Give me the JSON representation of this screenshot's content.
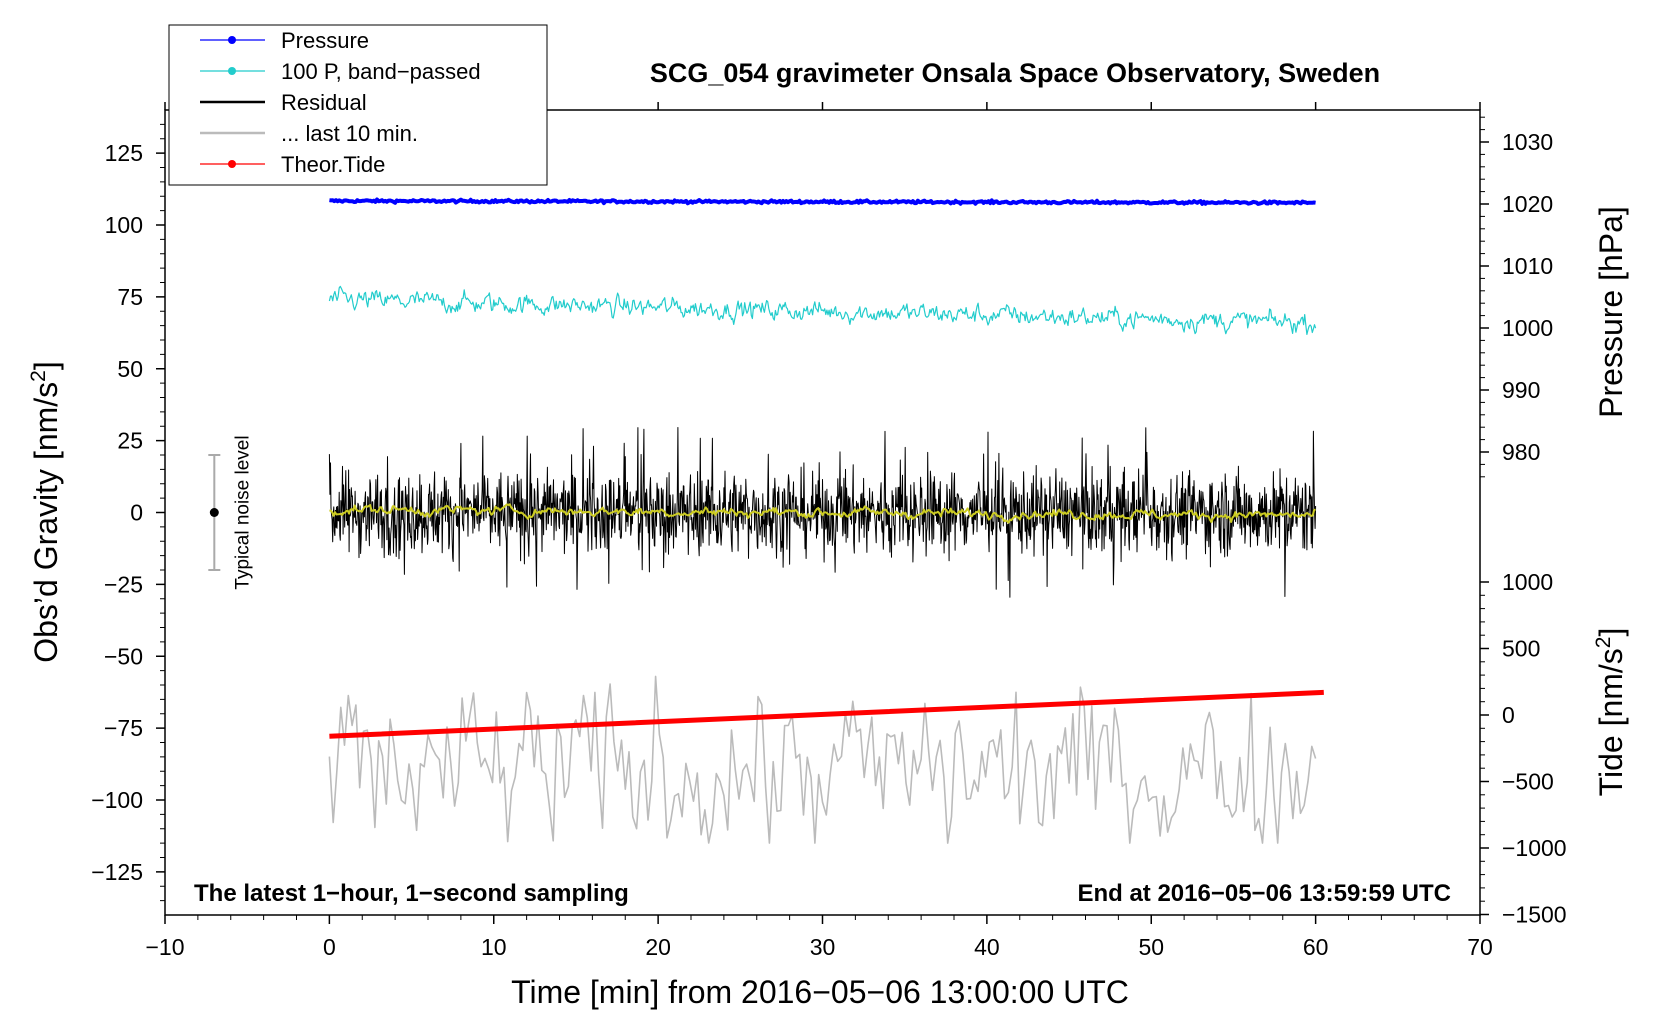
{
  "chart_data": {
    "type": "line",
    "title": "SCG_054 gravimeter Onsala Space Observatory, Sweden",
    "xlabel": "Time [min] from 2016−05−06 13:00:00 UTC",
    "ylabel_left": "Obs’d Gravity [nm/s",
    "ylabel_left_sup": "2",
    "ylabel_left_end": "]",
    "ylabel_right_pressure": "Pressure [hPa]",
    "ylabel_right_tide": "Tide [nm/s",
    "ylabel_right_tide_sup": "2",
    "ylabel_right_tide_end": "]",
    "xlim": [
      -10,
      70
    ],
    "ylim_left": [
      -140,
      140
    ],
    "pressure_range_shown": [
      975,
      1035
    ],
    "tide_range_shown": [
      -1500,
      1100
    ],
    "x_ticks": [
      -10,
      0,
      10,
      20,
      30,
      40,
      50,
      60,
      70
    ],
    "x_tick_labels": [
      "−10",
      "0",
      "10",
      "20",
      "30",
      "40",
      "50",
      "60",
      "70"
    ],
    "y_left_ticks": [
      125,
      100,
      75,
      50,
      25,
      0,
      -25,
      -50,
      -75,
      -100,
      -125
    ],
    "y_left_tick_labels": [
      "125",
      "100",
      "75",
      "50",
      "25",
      "0",
      "−25",
      "−50",
      "−75",
      "−100",
      "−125"
    ],
    "pressure_ticks": [
      1030,
      1020,
      1010,
      1000,
      990,
      980
    ],
    "pressure_tick_labels": [
      "1030",
      "1020",
      "1010",
      "1000",
      "990",
      "980"
    ],
    "tide_ticks": [
      1000,
      500,
      0,
      -500,
      -1000,
      -1500
    ],
    "tide_tick_labels": [
      "1000",
      "500",
      "0",
      "−500",
      "−1000",
      "−1500"
    ],
    "legend": [
      {
        "label": "Pressure",
        "color": "#0000ff",
        "marker": true
      },
      {
        "label": "100 P, band−passed",
        "color": "#22cccc",
        "marker": true
      },
      {
        "label": "Residual",
        "color": "#000000",
        "marker": false
      },
      {
        "label": "... last 10 min.",
        "color": "#bbbbbb",
        "marker": false
      },
      {
        "label": "Theor.Tide",
        "color": "#ff0000",
        "marker": true
      }
    ],
    "annotations": {
      "left": "The latest 1−hour, 1−second sampling",
      "right": "End at 2016−05−06 13:59:59 UTC",
      "noise_label": "Typical noise level"
    },
    "noise_bar": {
      "x": -7,
      "center": 0,
      "low": -20,
      "high": 20
    },
    "series": [
      {
        "name": "Pressure",
        "axis": "pressure",
        "color": "#0000ff",
        "start": [
          0,
          1020.5
        ],
        "end": [
          60,
          1020.2
        ],
        "noise": 0.15
      },
      {
        "name": "100 P, band-passed",
        "axis": "left",
        "color": "#22cccc",
        "start": [
          0,
          74
        ],
        "end": [
          60,
          66
        ],
        "noise": 2.0
      },
      {
        "name": "Residual",
        "axis": "left",
        "color": "#000000",
        "start": [
          0,
          0
        ],
        "end": [
          60,
          0
        ],
        "noise": 10,
        "spike_max": 30
      },
      {
        "name": "Residual smoothed",
        "axis": "left",
        "color": "#cccc22",
        "start": [
          0,
          1
        ],
        "end": [
          60,
          -1
        ],
        "noise": 1.2
      },
      {
        "name": "... last 10 min.",
        "axis": "left",
        "color": "#bbbbbb",
        "start": [
          0,
          -90
        ],
        "end": [
          60,
          -90
        ],
        "noise": 12,
        "min": -115,
        "max": -57
      },
      {
        "name": "Theor.Tide",
        "axis": "tide",
        "color": "#ff0000",
        "start": [
          0,
          -160
        ],
        "end": [
          60.5,
          170
        ],
        "noise": 0
      }
    ]
  }
}
